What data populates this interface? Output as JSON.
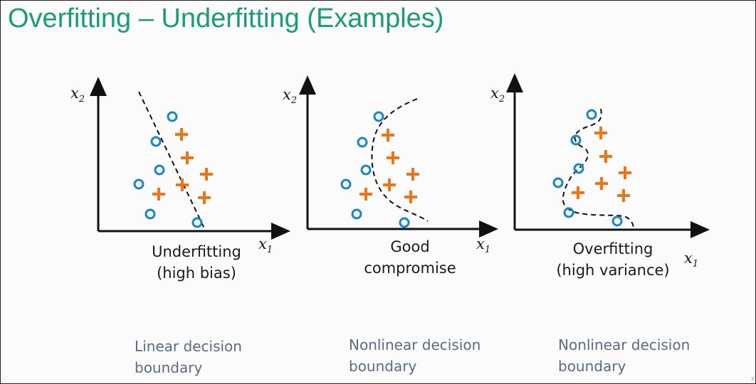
{
  "slide": {
    "title": "Overfitting – Underfitting (Examples)",
    "page_number": "3"
  },
  "colors": {
    "title": "#1a9b7a",
    "circle": "#1b86c6",
    "plus": "#ee7415",
    "caption": "#5a6b82",
    "axis": "#111111"
  },
  "axis": {
    "x_symbol": "x",
    "x_subscript": "1",
    "y_symbol": "x",
    "y_subscript": "2"
  },
  "panels": [
    {
      "label": "Underfitting\n(high bias)",
      "caption": "Linear decision\nboundary",
      "boundary": "linear"
    },
    {
      "label": "Good\ncompromise",
      "caption": "Nonlinear decision\nboundary",
      "boundary": "smooth-nonlinear"
    },
    {
      "label": "Overfitting\n(high variance)",
      "caption": "Nonlinear decision\nboundary",
      "boundary": "wiggly-nonlinear"
    }
  ],
  "icons": {
    "circle_marker": "circle-marker-icon",
    "plus_marker": "plus-marker-icon"
  }
}
